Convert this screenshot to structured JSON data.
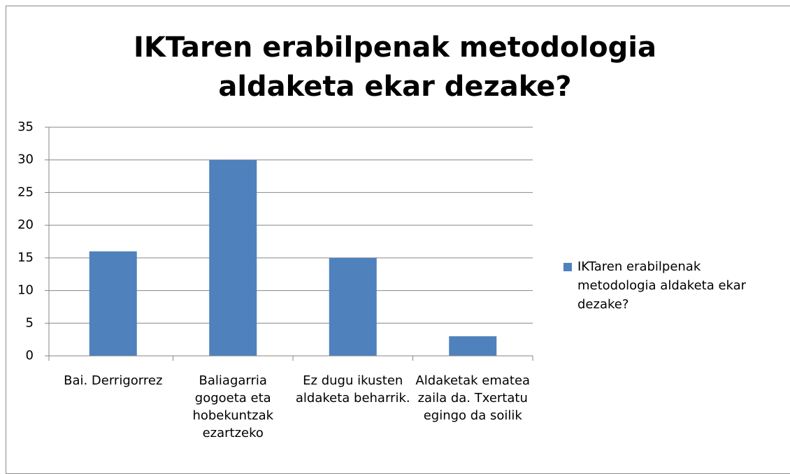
{
  "chart_data": {
    "type": "bar",
    "title": "IKTaren erabilpenak metodologia aldaketa ekar dezake?",
    "categories": [
      "Bai. Derrigorrez",
      "Baliagarria gogoeta eta hobekuntzak ezartzeko",
      "Ez dugu ikusten aldaketa beharrik.",
      "Aldaketak ematea zaila da. Txertatu egingo da soilik"
    ],
    "series": [
      {
        "name": "IKTaren erabilpenak metodologia aldaketa ekar dezake?",
        "color": "#4f81bd",
        "values": [
          16,
          30,
          15,
          3
        ]
      }
    ],
    "ylim": [
      0,
      35
    ],
    "yticks": [
      0,
      5,
      10,
      15,
      20,
      25,
      30,
      35
    ],
    "grid": true,
    "legend": "right"
  }
}
